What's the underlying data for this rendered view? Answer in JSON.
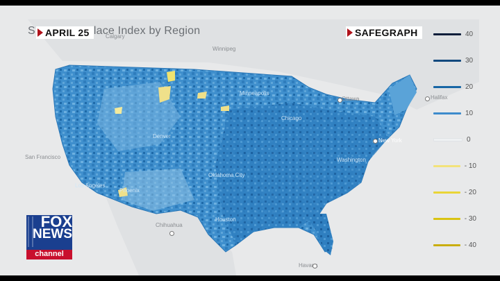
{
  "title": "S",
  "title_rest": "lace Index by Region",
  "date_badge": "APRIL 25",
  "brand_badge": "SAFEGRAPH",
  "legend": {
    "entries": [
      {
        "label": "40",
        "color": "#0b1d3a"
      },
      {
        "label": "30",
        "color": "#12497e"
      },
      {
        "label": "20",
        "color": "#1766a5"
      },
      {
        "label": "10",
        "color": "#3d8bcc"
      },
      {
        "label": "0",
        "color": "#eef0f2"
      },
      {
        "label": "- 10",
        "color": "#f2e27a"
      },
      {
        "label": "- 20",
        "color": "#e9d537"
      },
      {
        "label": "- 30",
        "color": "#d9c312"
      },
      {
        "label": "- 40",
        "color": "#c9ae0e"
      }
    ]
  },
  "cities": {
    "calgary": "Calgary",
    "winnipeg": "Winnipeg",
    "ottawa": "Ottawa",
    "halifax": "Halifax",
    "new_york": "New York",
    "san_francisco": "San Francisco",
    "los_angeles": "Los Angeles",
    "phoenix": "Phoenix",
    "chihuahua": "Chihuahua",
    "havana": "Havana",
    "oklahoma_city": "Oklahoma City",
    "houston": "Houston",
    "denver": "Denver",
    "minneapolis": "Minneapolis",
    "chicago": "Chicago",
    "washington": "Washington"
  },
  "logo": {
    "line1": "FOX",
    "line2": "NEWS",
    "line3": "channel",
    "color_blue": "#1a3f8f",
    "color_red": "#c8102e"
  }
}
